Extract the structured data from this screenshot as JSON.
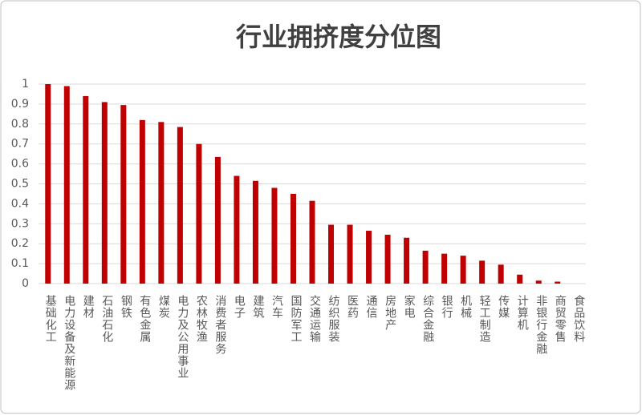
{
  "chart_data": {
    "type": "bar",
    "title": "行业拥挤度分位图",
    "categories": [
      "基础化工",
      "电力设备及新能源",
      "建材",
      "石油石化",
      "钢铁",
      "有色金属",
      "煤炭",
      "电力及公用事业",
      "农林牧渔",
      "消费者服务",
      "电子",
      "建筑",
      "汽车",
      "国防军工",
      "交通运输",
      "纺织服装",
      "医药",
      "通信",
      "房地产",
      "家电",
      "综合金融",
      "银行",
      "机械",
      "轻工制造",
      "传媒",
      "计算机",
      "非银行金融",
      "商贸零售",
      "食品饮料"
    ],
    "values": [
      1,
      0.99,
      0.94,
      0.91,
      0.895,
      0.82,
      0.81,
      0.785,
      0.7,
      0.635,
      0.54,
      0.515,
      0.48,
      0.45,
      0.415,
      0.295,
      0.295,
      0.265,
      0.245,
      0.23,
      0.165,
      0.15,
      0.14,
      0.115,
      0.095,
      0.045,
      0.015,
      0.01,
      0
    ],
    "color": "#c00000",
    "ylim": [
      0,
      1
    ],
    "yticks": [
      0,
      0.1,
      0.2,
      0.3,
      0.4,
      0.5,
      0.6,
      0.7,
      0.8,
      0.9,
      1
    ],
    "grid": true
  }
}
